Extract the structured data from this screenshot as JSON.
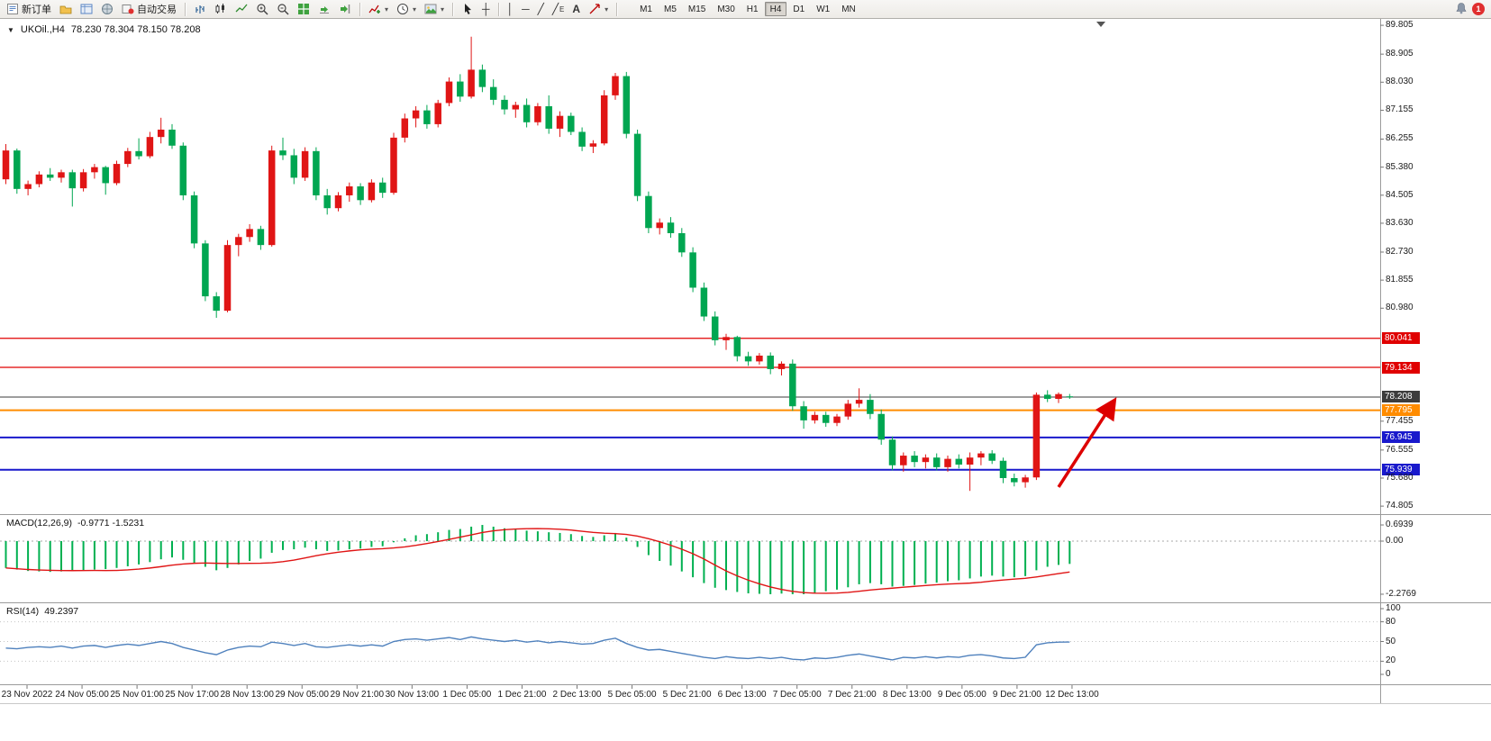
{
  "toolbar": {
    "new_order_label": "新订单",
    "auto_trading_label": "自动交易",
    "timeframe_labels": [
      "M1",
      "M5",
      "M15",
      "M30",
      "H1",
      "H4",
      "D1",
      "W1",
      "MN"
    ],
    "active_timeframe": "H4",
    "notification_count": "1"
  },
  "icons": {
    "symbol_collapse": "▼",
    "dropdown": "▾",
    "crosshair": "┼",
    "vline": "│",
    "hline": "─",
    "trendline": "╱",
    "channel": "╱",
    "channel_letter": "E",
    "text_tool": "A"
  },
  "chart": {
    "title": {
      "symbol": "UKOil.,H4",
      "ohlc": "78.230 78.304 78.150 78.208"
    },
    "macd_label": "MACD(12,26,9)",
    "macd_values": "-0.9771 -1.5231",
    "rsi_label": "RSI(14)",
    "rsi_value": "49.2397"
  },
  "chart_data": {
    "type": "candlestick",
    "symbol": "UKOil",
    "timeframe": "H4",
    "color_convention": "red=up, green=down",
    "colors": {
      "up": "#e01515",
      "down": "#00a651",
      "macd_histogram": "#00b050",
      "macd_signal": "#e01515",
      "rsi": "#4f81bd"
    },
    "price_range": {
      "min": 74.64,
      "max": 89.92
    },
    "candles_ohlc": [
      [
        85.0,
        86.1,
        84.85,
        85.9
      ],
      [
        85.9,
        85.96,
        84.55,
        84.7
      ],
      [
        84.7,
        84.96,
        84.5,
        84.85
      ],
      [
        84.85,
        85.25,
        84.75,
        85.15
      ],
      [
        85.15,
        85.35,
        84.95,
        85.05
      ],
      [
        85.05,
        85.3,
        84.9,
        85.22
      ],
      [
        85.22,
        85.3,
        84.15,
        84.72
      ],
      [
        84.72,
        85.32,
        84.62,
        85.22
      ],
      [
        85.22,
        85.48,
        85.02,
        85.38
      ],
      [
        85.38,
        85.42,
        84.52,
        84.88
      ],
      [
        84.88,
        85.58,
        84.82,
        85.48
      ],
      [
        85.48,
        85.98,
        85.38,
        85.88
      ],
      [
        85.88,
        86.28,
        85.62,
        85.72
      ],
      [
        85.72,
        86.48,
        85.66,
        86.32
      ],
      [
        86.32,
        86.92,
        86.12,
        86.55
      ],
      [
        86.55,
        86.72,
        85.95,
        86.05
      ],
      [
        86.05,
        86.15,
        84.35,
        84.5
      ],
      [
        84.5,
        84.62,
        82.85,
        83.0
      ],
      [
        83.0,
        83.1,
        81.2,
        81.35
      ],
      [
        81.35,
        81.48,
        80.68,
        80.9
      ],
      [
        80.9,
        83.1,
        80.85,
        82.95
      ],
      [
        82.95,
        83.3,
        82.6,
        83.2
      ],
      [
        83.2,
        83.6,
        83.05,
        83.45
      ],
      [
        83.45,
        83.55,
        82.8,
        82.95
      ],
      [
        82.95,
        86.05,
        82.9,
        85.9
      ],
      [
        85.9,
        86.3,
        85.6,
        85.75
      ],
      [
        85.75,
        85.95,
        84.85,
        85.05
      ],
      [
        85.05,
        86.0,
        84.95,
        85.88
      ],
      [
        85.88,
        86.0,
        84.35,
        84.5
      ],
      [
        84.5,
        84.7,
        83.9,
        84.1
      ],
      [
        84.1,
        84.6,
        84.0,
        84.5
      ],
      [
        84.5,
        84.9,
        84.3,
        84.78
      ],
      [
        84.78,
        84.88,
        84.2,
        84.35
      ],
      [
        84.35,
        85.0,
        84.28,
        84.9
      ],
      [
        84.9,
        85.05,
        84.42,
        84.58
      ],
      [
        84.58,
        86.45,
        84.52,
        86.3
      ],
      [
        86.3,
        87.05,
        86.15,
        86.9
      ],
      [
        86.9,
        87.28,
        86.62,
        87.15
      ],
      [
        87.15,
        87.32,
        86.58,
        86.72
      ],
      [
        86.72,
        87.48,
        86.62,
        87.38
      ],
      [
        87.38,
        88.18,
        87.28,
        88.05
      ],
      [
        88.05,
        88.28,
        87.42,
        87.58
      ],
      [
        87.58,
        89.45,
        87.52,
        88.42
      ],
      [
        88.42,
        88.58,
        87.72,
        87.88
      ],
      [
        87.88,
        88.12,
        87.32,
        87.48
      ],
      [
        87.48,
        87.62,
        87.02,
        87.18
      ],
      [
        87.18,
        87.42,
        86.92,
        87.32
      ],
      [
        87.32,
        87.52,
        86.62,
        86.78
      ],
      [
        86.78,
        87.38,
        86.68,
        87.28
      ],
      [
        87.28,
        87.62,
        86.42,
        86.58
      ],
      [
        86.58,
        87.12,
        86.32,
        86.98
      ],
      [
        86.98,
        87.08,
        86.38,
        86.48
      ],
      [
        86.48,
        86.62,
        85.88,
        86.02
      ],
      [
        86.02,
        86.22,
        85.82,
        86.12
      ],
      [
        86.12,
        87.78,
        86.06,
        87.62
      ],
      [
        87.62,
        88.32,
        87.48,
        88.22
      ],
      [
        88.22,
        88.35,
        86.28,
        86.42
      ],
      [
        86.42,
        86.55,
        84.32,
        84.48
      ],
      [
        84.48,
        84.62,
        83.32,
        83.48
      ],
      [
        83.48,
        83.78,
        83.28,
        83.65
      ],
      [
        83.65,
        83.82,
        83.18,
        83.32
      ],
      [
        83.32,
        83.48,
        82.58,
        82.72
      ],
      [
        82.72,
        82.88,
        81.48,
        81.62
      ],
      [
        81.62,
        81.78,
        80.58,
        80.72
      ],
      [
        80.72,
        80.88,
        79.82,
        79.98
      ],
      [
        79.98,
        80.18,
        79.68,
        80.08
      ],
      [
        80.08,
        80.12,
        79.32,
        79.48
      ],
      [
        79.48,
        79.62,
        79.18,
        79.32
      ],
      [
        79.32,
        79.58,
        79.22,
        79.5
      ],
      [
        79.5,
        79.6,
        78.92,
        79.08
      ],
      [
        79.08,
        79.32,
        78.88,
        79.25
      ],
      [
        79.25,
        79.38,
        77.78,
        77.92
      ],
      [
        77.92,
        78.08,
        77.22,
        77.48
      ],
      [
        77.48,
        77.75,
        77.38,
        77.65
      ],
      [
        77.65,
        77.75,
        77.28,
        77.4
      ],
      [
        77.4,
        77.68,
        77.3,
        77.6
      ],
      [
        77.6,
        78.12,
        77.5,
        78.0
      ],
      [
        78.0,
        78.48,
        77.88,
        78.12
      ],
      [
        78.12,
        78.3,
        77.52,
        77.68
      ],
      [
        77.68,
        77.82,
        76.72,
        76.88
      ],
      [
        76.88,
        76.98,
        75.92,
        76.08
      ],
      [
        76.08,
        76.48,
        75.88,
        76.38
      ],
      [
        76.38,
        76.52,
        76.02,
        76.18
      ],
      [
        76.18,
        76.42,
        75.98,
        76.32
      ],
      [
        76.32,
        76.45,
        75.92,
        76.02
      ],
      [
        76.02,
        76.38,
        75.88,
        76.28
      ],
      [
        76.28,
        76.42,
        75.98,
        76.1
      ],
      [
        76.1,
        76.48,
        75.28,
        76.32
      ],
      [
        76.32,
        76.52,
        76.08,
        76.45
      ],
      [
        76.45,
        76.55,
        76.12,
        76.22
      ],
      [
        76.22,
        76.32,
        75.52,
        75.68
      ],
      [
        75.68,
        75.82,
        75.42,
        75.55
      ],
      [
        75.55,
        75.78,
        75.38,
        75.7
      ],
      [
        75.7,
        78.35,
        75.62,
        78.28
      ],
      [
        78.28,
        78.42,
        78.05,
        78.15
      ],
      [
        78.15,
        78.35,
        78.02,
        78.3
      ],
      [
        78.23,
        78.304,
        78.15,
        78.208
      ]
    ],
    "price_axis_labels": [
      {
        "text": "89.805",
        "price": 89.805
      },
      {
        "text": "88.905",
        "price": 88.905
      },
      {
        "text": "88.030",
        "price": 88.03
      },
      {
        "text": "87.155",
        "price": 87.155
      },
      {
        "text": "86.255",
        "price": 86.255
      },
      {
        "text": "85.380",
        "price": 85.38
      },
      {
        "text": "84.505",
        "price": 84.505
      },
      {
        "text": "83.630",
        "price": 83.63
      },
      {
        "text": "82.730",
        "price": 82.73
      },
      {
        "text": "81.855",
        "price": 81.855
      },
      {
        "text": "80.980",
        "price": 80.98
      },
      {
        "text": "77.455",
        "price": 77.455
      },
      {
        "text": "76.555",
        "price": 76.555
      },
      {
        "text": "75.680",
        "price": 75.68
      },
      {
        "text": "74.805",
        "price": 74.805
      }
    ],
    "hlines": [
      {
        "price": 80.041,
        "label": "80.041",
        "color": "#e00000",
        "width": 1.2
      },
      {
        "price": 79.134,
        "label": "79.134",
        "color": "#e00000",
        "width": 1.2
      },
      {
        "price": 78.208,
        "label": "78.208",
        "color": "#3c3c3c",
        "width": 1,
        "current": true
      },
      {
        "price": 77.795,
        "label": "77.795",
        "color": "#ff8c00",
        "width": 2
      },
      {
        "price": 76.945,
        "label": "76.945",
        "color": "#1919cc",
        "width": 2
      },
      {
        "price": 75.939,
        "label": "75.939",
        "color": "#1919cc",
        "width": 2
      }
    ],
    "current_price": 78.208,
    "time_labels": [
      "23 Nov 2022",
      "24 Nov 05:00",
      "25 Nov 01:00",
      "25 Nov 17:00",
      "28 Nov 13:00",
      "29 Nov 05:00",
      "29 Nov 21:00",
      "30 Nov 13:00",
      "1 Dec 05:00",
      "1 Dec 21:00",
      "2 Dec 13:00",
      "5 Dec 05:00",
      "5 Dec 21:00",
      "6 Dec 13:00",
      "7 Dec 05:00",
      "7 Dec 21:00",
      "8 Dec 13:00",
      "9 Dec 05:00",
      "9 Dec 21:00",
      "12 Dec 13:00"
    ],
    "macd": {
      "histogram": [
        -1.15,
        -1.22,
        -1.28,
        -1.3,
        -1.32,
        -1.3,
        -1.28,
        -1.25,
        -1.22,
        -1.2,
        -1.15,
        -1.08,
        -1.0,
        -0.9,
        -0.78,
        -0.7,
        -0.8,
        -0.95,
        -1.1,
        -1.25,
        -1.15,
        -1.0,
        -0.85,
        -0.75,
        -0.5,
        -0.38,
        -0.35,
        -0.28,
        -0.35,
        -0.42,
        -0.4,
        -0.35,
        -0.32,
        -0.25,
        -0.22,
        -0.05,
        0.12,
        0.25,
        0.3,
        0.38,
        0.48,
        0.52,
        0.62,
        0.6939,
        0.62,
        0.55,
        0.5,
        0.45,
        0.42,
        0.38,
        0.35,
        0.3,
        0.22,
        0.18,
        0.25,
        0.35,
        0.15,
        -0.25,
        -0.6,
        -0.85,
        -1.05,
        -1.3,
        -1.55,
        -1.8,
        -2.0,
        -2.1,
        -2.18,
        -2.24,
        -2.26,
        -2.2769,
        -2.25,
        -2.2769,
        -2.2769,
        -2.22,
        -2.15,
        -2.08,
        -1.98,
        -1.85,
        -1.8,
        -1.85,
        -1.95,
        -1.92,
        -1.88,
        -1.82,
        -1.78,
        -1.72,
        -1.68,
        -1.6,
        -1.52,
        -1.48,
        -1.52,
        -1.55,
        -1.5,
        -1.25,
        -1.1,
        -1.02,
        -0.9771
      ],
      "axis_labels": [
        {
          "text": "0.6939",
          "value": 0.6939
        },
        {
          "text": "0.00",
          "value": 0
        },
        {
          "text": "-2.2769",
          "value": -2.2769
        }
      ]
    },
    "rsi": {
      "values": [
        40,
        39,
        41,
        42,
        41,
        43,
        40,
        43,
        44,
        41,
        44,
        46,
        44,
        47,
        50,
        47,
        41,
        37,
        33,
        30,
        37,
        41,
        43,
        42,
        49,
        47,
        44,
        47,
        42,
        41,
        43,
        45,
        43,
        45,
        43,
        50,
        53,
        54,
        52,
        54,
        56,
        53,
        57,
        54,
        52,
        50,
        52,
        49,
        51,
        48,
        50,
        48,
        46,
        47,
        52,
        55,
        47,
        41,
        37,
        38,
        35,
        32,
        29,
        26,
        24,
        27,
        25,
        24,
        26,
        24,
        26,
        23,
        22,
        25,
        24,
        26,
        29,
        31,
        28,
        25,
        22,
        26,
        25,
        27,
        25,
        27,
        26,
        29,
        30,
        28,
        25,
        24,
        26,
        45,
        48,
        49,
        49.24
      ],
      "levels": [
        {
          "text": "100",
          "value": 100,
          "line": false
        },
        {
          "text": "80",
          "value": 80,
          "line": true
        },
        {
          "text": "50",
          "value": 50,
          "line": true
        },
        {
          "text": "20",
          "value": 20,
          "line": true
        },
        {
          "text": "0",
          "value": 0,
          "line": false
        }
      ]
    },
    "annotation_arrow": {
      "from": {
        "bar": 95,
        "price": 75.4
      },
      "to": {
        "bar": 100,
        "price": 78.08
      },
      "color": "#dd0000"
    }
  }
}
